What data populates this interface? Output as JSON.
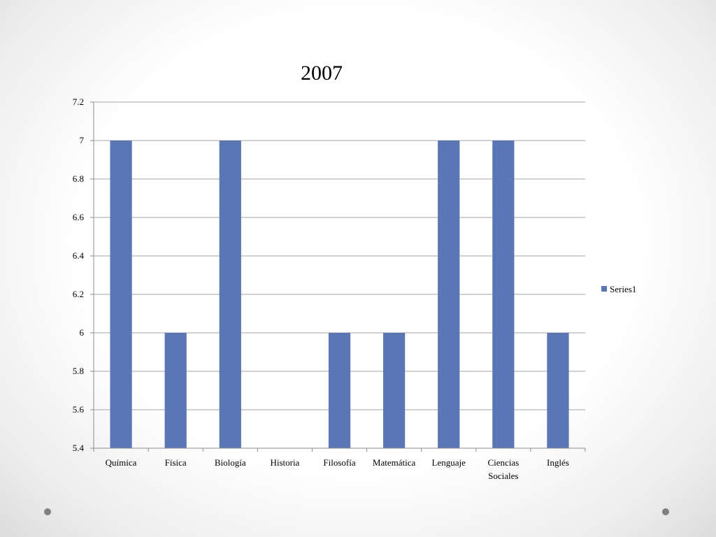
{
  "chart_data": {
    "type": "bar",
    "title": "2007",
    "xlabel": "",
    "ylabel": "",
    "categories": [
      "Química",
      "Física",
      "Biología",
      "Historia",
      "Filosofía",
      "Matemática",
      "Lenguaje",
      "Ciencias Sociales",
      "Inglés"
    ],
    "series": [
      {
        "name": "Series1",
        "values": [
          7,
          6,
          7,
          null,
          6,
          6,
          7,
          7,
          6
        ],
        "color": "#5b76b4"
      }
    ],
    "ylim": [
      5.4,
      7.2
    ],
    "yticks": [
      "5.4",
      "5.6",
      "5.8",
      "6",
      "6.2",
      "6.4",
      "6.6",
      "6.8",
      "7",
      "7.2"
    ],
    "grid": true,
    "legend": "right"
  },
  "colors": {
    "bar": "#5b76b4",
    "gridline": "#a6a6a6",
    "axis": "#8c8c8c",
    "dot": "#7f7f7f"
  }
}
